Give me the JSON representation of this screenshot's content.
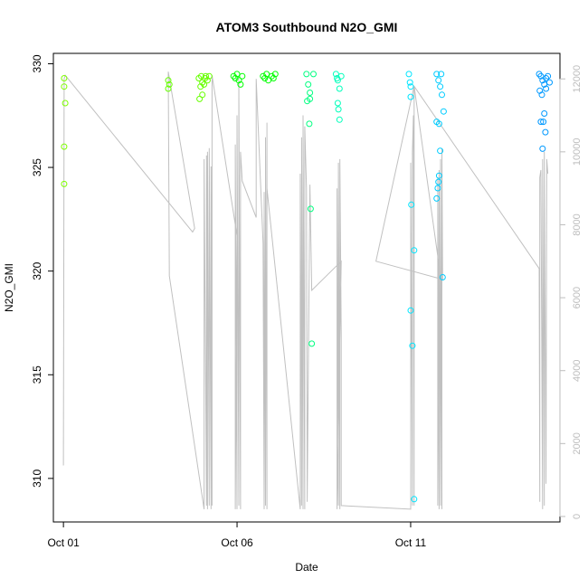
{
  "chart_data": {
    "type": "scatter",
    "title": "ATOM3 Southbound N2O_GMI",
    "xlabel": "Date",
    "ylabel": "N2O_GMI",
    "x_ticks": [
      {
        "value": 0,
        "label": "Oct 01"
      },
      {
        "value": 5,
        "label": "Oct 06"
      },
      {
        "value": 10,
        "label": "Oct 11"
      }
    ],
    "y_ticks": [
      310,
      315,
      320,
      325,
      330
    ],
    "y2_ticks": [
      0,
      2000,
      4000,
      6000,
      8000,
      10000,
      12000
    ],
    "xlim": [
      -0.29,
      14.3
    ],
    "ylim": [
      307.9,
      330.5
    ],
    "y2lim": [
      -150,
      12700
    ],
    "grid": false,
    "series": [
      {
        "color": "#7fff00",
        "values": [
          [
            0.02,
            329.3
          ],
          [
            0.02,
            328.9
          ],
          [
            0.05,
            328.1
          ],
          [
            0.02,
            326.0
          ],
          [
            0.02,
            324.2
          ]
        ]
      },
      {
        "color": "#66ff00",
        "values": [
          [
            3.02,
            329.2
          ],
          [
            3.05,
            329.0
          ],
          [
            3.02,
            328.8
          ],
          [
            3.9,
            329.3
          ],
          [
            3.95,
            328.9
          ],
          [
            4.0,
            328.5
          ],
          [
            3.92,
            328.3
          ],
          [
            3.97,
            329.4
          ],
          [
            4.05,
            329.0
          ],
          [
            4.1,
            329.4
          ],
          [
            4.15,
            329.2
          ],
          [
            4.2,
            329.4
          ],
          [
            4.0,
            329.1
          ],
          [
            4.08,
            329.3
          ]
        ]
      },
      {
        "color": "#00ff00",
        "values": [
          [
            4.9,
            329.4
          ],
          [
            4.95,
            329.3
          ],
          [
            5.0,
            329.5
          ],
          [
            5.05,
            329.2
          ],
          [
            5.1,
            329.0
          ],
          [
            5.15,
            329.4
          ],
          [
            5.75,
            329.4
          ],
          [
            5.8,
            329.3
          ],
          [
            5.85,
            329.5
          ],
          [
            5.9,
            329.2
          ],
          [
            6.0,
            329.4
          ],
          [
            6.05,
            329.3
          ],
          [
            6.1,
            329.5
          ]
        ]
      },
      {
        "color": "#00ff80",
        "values": [
          [
            7.0,
            329.5
          ],
          [
            7.05,
            329.0
          ],
          [
            7.1,
            328.6
          ],
          [
            7.02,
            328.2
          ],
          [
            7.08,
            327.1
          ],
          [
            7.12,
            323.0
          ],
          [
            7.15,
            316.5
          ],
          [
            7.2,
            329.5
          ],
          [
            7.1,
            328.3
          ]
        ]
      },
      {
        "color": "#00ffbb",
        "values": [
          [
            7.85,
            329.5
          ],
          [
            7.9,
            329.2
          ],
          [
            7.95,
            328.8
          ],
          [
            8.0,
            329.4
          ],
          [
            7.9,
            328.1
          ],
          [
            7.92,
            327.8
          ],
          [
            7.95,
            327.3
          ],
          [
            7.88,
            329.3
          ]
        ]
      },
      {
        "color": "#00e5ff",
        "values": [
          [
            9.95,
            329.5
          ],
          [
            9.98,
            329.1
          ],
          [
            10.0,
            328.4
          ],
          [
            10.02,
            323.2
          ],
          [
            10.1,
            321.0
          ],
          [
            10.0,
            318.1
          ],
          [
            10.05,
            316.4
          ],
          [
            10.1,
            309.0
          ],
          [
            10.0,
            328.9
          ]
        ]
      },
      {
        "color": "#00ccff",
        "values": [
          [
            10.75,
            329.5
          ],
          [
            10.8,
            329.2
          ],
          [
            10.85,
            328.9
          ],
          [
            10.9,
            328.5
          ],
          [
            10.75,
            327.2
          ],
          [
            10.82,
            327.1
          ],
          [
            10.95,
            327.7
          ],
          [
            10.85,
            325.8
          ],
          [
            10.82,
            324.6
          ],
          [
            10.8,
            324.3
          ],
          [
            10.78,
            324.0
          ],
          [
            10.75,
            323.5
          ],
          [
            10.92,
            319.7
          ],
          [
            10.88,
            329.5
          ]
        ]
      },
      {
        "color": "#0099ff",
        "values": [
          [
            13.7,
            329.5
          ],
          [
            13.75,
            329.4
          ],
          [
            13.8,
            329.2
          ],
          [
            13.85,
            329.0
          ],
          [
            13.9,
            328.8
          ],
          [
            13.95,
            329.4
          ],
          [
            14.0,
            329.1
          ],
          [
            13.72,
            328.7
          ],
          [
            13.78,
            328.5
          ],
          [
            13.82,
            327.2
          ],
          [
            13.88,
            326.7
          ],
          [
            13.8,
            325.9
          ],
          [
            13.85,
            327.6
          ],
          [
            13.9,
            329.3
          ],
          [
            13.75,
            327.2
          ]
        ]
      }
    ],
    "altitude_trace": {
      "color": "#c0c0c0",
      "points": [
        [
          0.0,
          1400
        ],
        [
          0.02,
          12000
        ],
        [
          0.05,
          12100
        ],
        [
          3.72,
          7800
        ],
        [
          3.78,
          7900
        ],
        [
          3.02,
          12200
        ],
        [
          3.05,
          6600
        ],
        [
          4.05,
          200
        ],
        [
          4.05,
          9800
        ],
        [
          4.12,
          300
        ],
        [
          4.12,
          9900
        ],
        [
          4.15,
          200
        ],
        [
          4.15,
          10000
        ],
        [
          4.2,
          300
        ],
        [
          4.2,
          10100
        ],
        [
          4.25,
          200
        ],
        [
          4.25,
          9600
        ],
        [
          4.28,
          300
        ],
        [
          4.28,
          12100
        ],
        [
          5.0,
          7700
        ],
        [
          4.95,
          200
        ],
        [
          4.95,
          10200
        ],
        [
          5.0,
          200
        ],
        [
          5.0,
          11000
        ],
        [
          5.05,
          300
        ],
        [
          5.05,
          12000
        ],
        [
          5.1,
          200
        ],
        [
          5.1,
          10000
        ],
        [
          5.15,
          9200
        ],
        [
          5.55,
          8200
        ],
        [
          5.55,
          12000
        ],
        [
          5.75,
          7500
        ],
        [
          5.78,
          200
        ],
        [
          5.78,
          8900
        ],
        [
          5.82,
          300
        ],
        [
          5.82,
          10400
        ],
        [
          5.86,
          200
        ],
        [
          5.86,
          10800
        ],
        [
          5.86,
          9000
        ],
        [
          6.82,
          200
        ],
        [
          6.82,
          9400
        ],
        [
          6.86,
          300
        ],
        [
          6.86,
          10400
        ],
        [
          6.9,
          200
        ],
        [
          6.9,
          11000
        ],
        [
          6.95,
          200
        ],
        [
          6.95,
          10700
        ],
        [
          7.0,
          9000
        ],
        [
          7.02,
          400
        ],
        [
          7.1,
          9100
        ],
        [
          7.15,
          6200
        ],
        [
          8.0,
          7000
        ],
        [
          7.88,
          200
        ],
        [
          7.88,
          9000
        ],
        [
          7.92,
          300
        ],
        [
          7.92,
          9700
        ],
        [
          7.96,
          200
        ],
        [
          7.96,
          9800
        ],
        [
          8.0,
          5000
        ],
        [
          8.0,
          300
        ],
        [
          10.0,
          200
        ],
        [
          10.0,
          9700
        ],
        [
          10.05,
          300
        ],
        [
          10.05,
          10000
        ],
        [
          10.08,
          11000
        ],
        [
          10.1,
          300
        ],
        [
          10.1,
          11800
        ],
        [
          10.8,
          7000
        ],
        [
          10.78,
          300
        ],
        [
          10.78,
          9300
        ],
        [
          10.82,
          200
        ],
        [
          10.82,
          9500
        ],
        [
          10.86,
          300
        ],
        [
          10.86,
          9800
        ],
        [
          10.9,
          200
        ],
        [
          10.9,
          10100
        ],
        [
          10.92,
          6500
        ],
        [
          9.0,
          7000
        ],
        [
          10.1,
          11800
        ],
        [
          13.7,
          6800
        ],
        [
          13.72,
          400
        ],
        [
          13.72,
          9300
        ],
        [
          13.75,
          9500
        ],
        [
          13.8,
          200
        ],
        [
          13.8,
          9800
        ],
        [
          13.85,
          300
        ],
        [
          13.85,
          10000
        ],
        [
          13.9,
          900
        ],
        [
          13.92,
          9800
        ],
        [
          13.95,
          9400
        ]
      ]
    }
  }
}
